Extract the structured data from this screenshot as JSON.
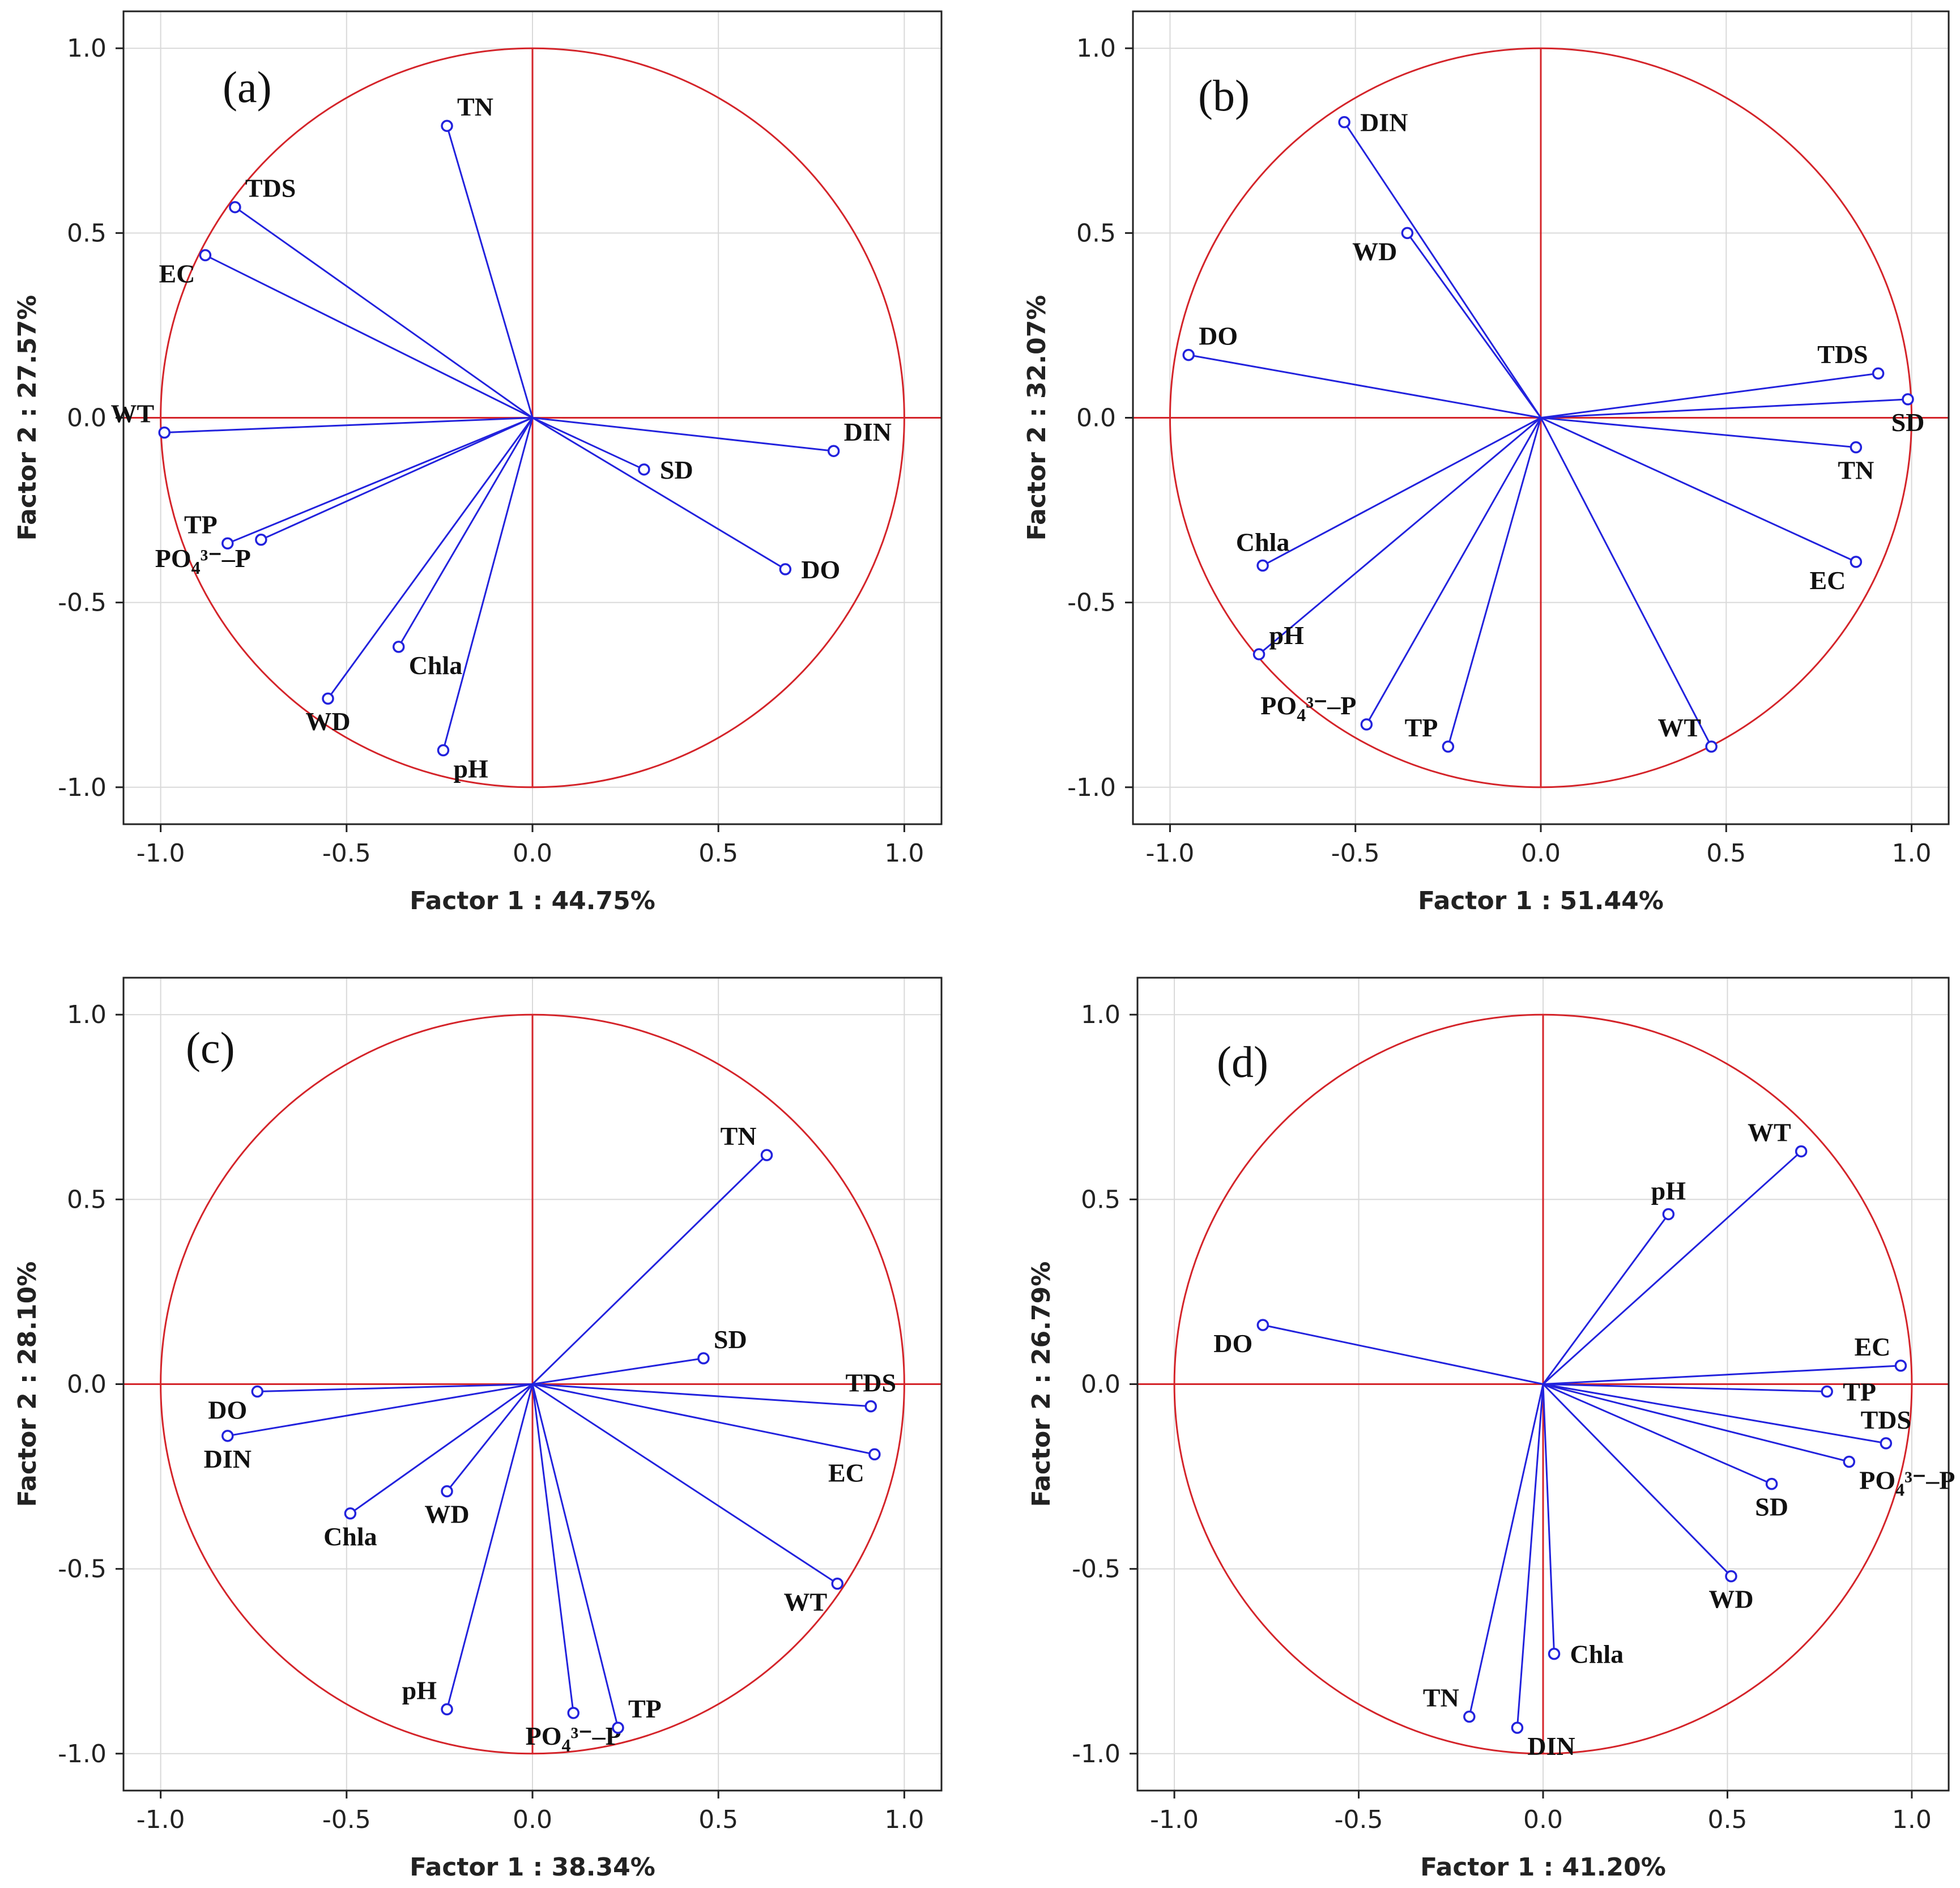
{
  "colors": {
    "circle": "#d4242a",
    "axes": "#d4242a",
    "vectors": "#2222dd",
    "grid": "#d9d9d9",
    "frame": "#222222"
  },
  "chart_data": [
    {
      "type": "scatter",
      "panel": "(a)",
      "xlabel": "Factor 1 : 44.75%",
      "ylabel": "Factor 2 : 27.57%",
      "xlim": [
        -1.1,
        1.1
      ],
      "ylim": [
        -1.1,
        1.1
      ],
      "ticks": [
        -1.0,
        -0.5,
        0.0,
        0.5,
        1.0
      ],
      "tick_labels": [
        "-1.0",
        "-0.5",
        "0.0",
        "0.5",
        "1.0"
      ],
      "grid": true,
      "points": [
        {
          "name": "TN",
          "label": "TN",
          "sub": "",
          "suffix": "",
          "x": -0.23,
          "y": 0.79,
          "anchor": "ur"
        },
        {
          "name": "TDS",
          "label": "TDS",
          "sub": "",
          "suffix": "",
          "x": -0.8,
          "y": 0.57,
          "anchor": "ur"
        },
        {
          "name": "EC",
          "label": "EC",
          "sub": "",
          "suffix": "",
          "x": -0.88,
          "y": 0.44,
          "anchor": "bl"
        },
        {
          "name": "WT",
          "label": "WT",
          "sub": "",
          "suffix": "",
          "x": -0.99,
          "y": -0.04,
          "anchor": "ul"
        },
        {
          "name": "DIN",
          "label": "DIN",
          "sub": "",
          "suffix": "",
          "x": 0.81,
          "y": -0.09,
          "anchor": "ur"
        },
        {
          "name": "SD",
          "label": "SD",
          "sub": "",
          "suffix": "",
          "x": 0.3,
          "y": -0.14,
          "anchor": "r"
        },
        {
          "name": "TP",
          "label": "TP",
          "sub": "",
          "suffix": "",
          "x": -0.82,
          "y": -0.34,
          "anchor": "ul"
        },
        {
          "name": "PO4-P",
          "label": "PO",
          "sub": "4",
          "suffix": "³⁻–P",
          "x": -0.73,
          "y": -0.33,
          "anchor": "bl"
        },
        {
          "name": "DO",
          "label": "DO",
          "sub": "",
          "suffix": "",
          "x": 0.68,
          "y": -0.41,
          "anchor": "r"
        },
        {
          "name": "Chla",
          "label": "Chla",
          "sub": "",
          "suffix": "",
          "x": -0.36,
          "y": -0.62,
          "anchor": "br"
        },
        {
          "name": "WD",
          "label": "WD",
          "sub": "",
          "suffix": "",
          "x": -0.55,
          "y": -0.76,
          "anchor": "b"
        },
        {
          "name": "pH",
          "label": "pH",
          "sub": "",
          "suffix": "",
          "x": -0.24,
          "y": -0.9,
          "anchor": "br"
        }
      ]
    },
    {
      "type": "scatter",
      "panel": "(b)",
      "xlabel": "Factor 1 : 51.44%",
      "ylabel": "Factor 2 : 32.07%",
      "xlim": [
        -1.1,
        1.1
      ],
      "ylim": [
        -1.1,
        1.1
      ],
      "ticks": [
        -1.0,
        -0.5,
        0.0,
        0.5,
        1.0
      ],
      "tick_labels": [
        "-1.0",
        "-0.5",
        "0.0",
        "0.5",
        "1.0"
      ],
      "grid": true,
      "points": [
        {
          "name": "DIN",
          "label": "DIN",
          "sub": "",
          "suffix": "",
          "x": -0.53,
          "y": 0.8,
          "anchor": "r"
        },
        {
          "name": "WD",
          "label": "WD",
          "sub": "",
          "suffix": "",
          "x": -0.36,
          "y": 0.5,
          "anchor": "bl"
        },
        {
          "name": "DO",
          "label": "DO",
          "sub": "",
          "suffix": "",
          "x": -0.95,
          "y": 0.17,
          "anchor": "ur"
        },
        {
          "name": "TDS",
          "label": "TDS",
          "sub": "",
          "suffix": "",
          "x": 0.91,
          "y": 0.12,
          "anchor": "ul"
        },
        {
          "name": "SD",
          "label": "SD",
          "sub": "",
          "suffix": "",
          "x": 0.99,
          "y": 0.05,
          "anchor": "b"
        },
        {
          "name": "TN",
          "label": "TN",
          "sub": "",
          "suffix": "",
          "x": 0.85,
          "y": -0.08,
          "anchor": "b"
        },
        {
          "name": "EC",
          "label": "EC",
          "sub": "",
          "suffix": "",
          "x": 0.85,
          "y": -0.39,
          "anchor": "bl"
        },
        {
          "name": "Chla",
          "label": "Chla",
          "sub": "",
          "suffix": "",
          "x": -0.75,
          "y": -0.4,
          "anchor": "u"
        },
        {
          "name": "pH",
          "label": "pH",
          "sub": "",
          "suffix": "",
          "x": -0.76,
          "y": -0.64,
          "anchor": "ur"
        },
        {
          "name": "PO4-P",
          "label": "PO",
          "sub": "4",
          "suffix": "³⁻–P",
          "x": -0.47,
          "y": -0.83,
          "anchor": "ul"
        },
        {
          "name": "TP",
          "label": "TP",
          "sub": "",
          "suffix": "",
          "x": -0.25,
          "y": -0.89,
          "anchor": "ul"
        },
        {
          "name": "WT",
          "label": "WT",
          "sub": "",
          "suffix": "",
          "x": 0.46,
          "y": -0.89,
          "anchor": "ul"
        }
      ]
    },
    {
      "type": "scatter",
      "panel": "(c)",
      "xlabel": "Factor 1 : 38.34%",
      "ylabel": "Factor 2 : 28.10%",
      "xlim": [
        -1.1,
        1.1
      ],
      "ylim": [
        -1.1,
        1.1
      ],
      "ticks": [
        -1.0,
        -0.5,
        0.0,
        0.5,
        1.0
      ],
      "tick_labels": [
        "-1.0",
        "-0.5",
        "0.0",
        "0.5",
        "1.0"
      ],
      "grid": true,
      "points": [
        {
          "name": "TN",
          "label": "TN",
          "sub": "",
          "suffix": "",
          "x": 0.63,
          "y": 0.62,
          "anchor": "ul"
        },
        {
          "name": "SD",
          "label": "SD",
          "sub": "",
          "suffix": "",
          "x": 0.46,
          "y": 0.07,
          "anchor": "ur"
        },
        {
          "name": "DO",
          "label": "DO",
          "sub": "",
          "suffix": "",
          "x": -0.74,
          "y": -0.02,
          "anchor": "bl"
        },
        {
          "name": "TDS",
          "label": "TDS",
          "sub": "",
          "suffix": "",
          "x": 0.91,
          "y": -0.06,
          "anchor": "u"
        },
        {
          "name": "DIN",
          "label": "DIN",
          "sub": "",
          "suffix": "",
          "x": -0.82,
          "y": -0.14,
          "anchor": "b"
        },
        {
          "name": "EC",
          "label": "EC",
          "sub": "",
          "suffix": "",
          "x": 0.92,
          "y": -0.19,
          "anchor": "bl"
        },
        {
          "name": "Chla",
          "label": "Chla",
          "sub": "",
          "suffix": "",
          "x": -0.49,
          "y": -0.35,
          "anchor": "b"
        },
        {
          "name": "WD",
          "label": "WD",
          "sub": "",
          "suffix": "",
          "x": -0.23,
          "y": -0.29,
          "anchor": "b"
        },
        {
          "name": "WT",
          "label": "WT",
          "sub": "",
          "suffix": "",
          "x": 0.82,
          "y": -0.54,
          "anchor": "bl"
        },
        {
          "name": "pH",
          "label": "pH",
          "sub": "",
          "suffix": "",
          "x": -0.23,
          "y": -0.88,
          "anchor": "ul"
        },
        {
          "name": "PO4-P",
          "label": "PO",
          "sub": "4",
          "suffix": "³⁻–P",
          "x": 0.11,
          "y": -0.89,
          "anchor": "b"
        },
        {
          "name": "TP",
          "label": "TP",
          "sub": "",
          "suffix": "",
          "x": 0.23,
          "y": -0.93,
          "anchor": "ur"
        }
      ]
    },
    {
      "type": "scatter",
      "panel": "(d)",
      "xlabel": "Factor 1 : 41.20%",
      "ylabel": "Factor 2 : 26.79%",
      "xlim": [
        -1.1,
        1.1
      ],
      "ylim": [
        -1.1,
        1.1
      ],
      "ticks": [
        -1.0,
        -0.5,
        0.0,
        0.5,
        1.0
      ],
      "tick_labels": [
        "-1.0",
        "-0.5",
        "0.0",
        "0.5",
        "1.0"
      ],
      "grid": true,
      "points": [
        {
          "name": "WT",
          "label": "WT",
          "sub": "",
          "suffix": "",
          "x": 0.7,
          "y": 0.63,
          "anchor": "ul"
        },
        {
          "name": "pH",
          "label": "pH",
          "sub": "",
          "suffix": "",
          "x": 0.34,
          "y": 0.46,
          "anchor": "u"
        },
        {
          "name": "DO",
          "label": "DO",
          "sub": "",
          "suffix": "",
          "x": -0.76,
          "y": 0.16,
          "anchor": "bl"
        },
        {
          "name": "EC",
          "label": "EC",
          "sub": "",
          "suffix": "",
          "x": 0.97,
          "y": 0.05,
          "anchor": "ul"
        },
        {
          "name": "TP",
          "label": "TP",
          "sub": "",
          "suffix": "",
          "x": 0.77,
          "y": -0.02,
          "anchor": "r"
        },
        {
          "name": "TDS",
          "label": "TDS",
          "sub": "",
          "suffix": "",
          "x": 0.93,
          "y": -0.16,
          "anchor": "u"
        },
        {
          "name": "PO4-P",
          "label": "PO",
          "sub": "4",
          "suffix": "³⁻–P",
          "x": 0.83,
          "y": -0.21,
          "anchor": "br"
        },
        {
          "name": "SD",
          "label": "SD",
          "sub": "",
          "suffix": "",
          "x": 0.62,
          "y": -0.27,
          "anchor": "b"
        },
        {
          "name": "WD",
          "label": "WD",
          "sub": "",
          "suffix": "",
          "x": 0.51,
          "y": -0.52,
          "anchor": "b"
        },
        {
          "name": "Chla",
          "label": "Chla",
          "sub": "",
          "suffix": "",
          "x": 0.03,
          "y": -0.73,
          "anchor": "r"
        },
        {
          "name": "TN",
          "label": "TN",
          "sub": "",
          "suffix": "",
          "x": -0.2,
          "y": -0.9,
          "anchor": "ul"
        },
        {
          "name": "DIN",
          "label": "DIN",
          "sub": "",
          "suffix": "",
          "x": -0.07,
          "y": -0.93,
          "anchor": "br"
        }
      ]
    }
  ]
}
